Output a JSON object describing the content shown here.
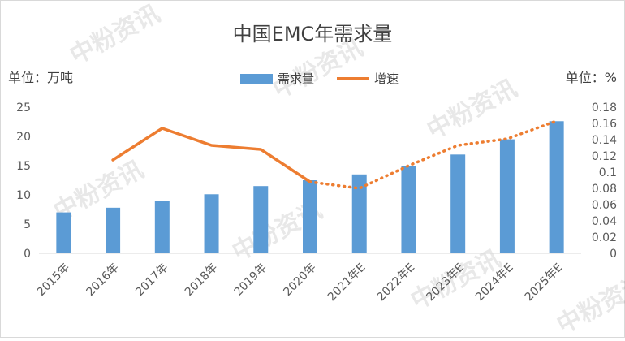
{
  "watermark": "中粉资讯",
  "chart_data": {
    "type": "bar",
    "title": "中国EMC年需求量",
    "left_unit": "单位：万吨",
    "right_unit": "单位：%",
    "categories": [
      "2015年",
      "2016年",
      "2017年",
      "2018年",
      "2019年",
      "2020年",
      "2021年E",
      "2022年E",
      "2023年E",
      "2024年E",
      "2025年E"
    ],
    "series": [
      {
        "name": "需求量",
        "type": "bar",
        "axis": "left",
        "color": "#5b9bd5",
        "values": [
          7.0,
          7.8,
          9.0,
          10.1,
          11.5,
          12.5,
          13.5,
          14.9,
          16.9,
          19.5,
          22.6
        ]
      },
      {
        "name": "增速",
        "type": "line",
        "axis": "right",
        "color": "#ed7d31",
        "values": [
          null,
          0.115,
          0.154,
          0.133,
          0.128,
          0.088,
          0.08,
          0.108,
          0.133,
          0.141,
          0.163
        ],
        "forecast_from_index": 5
      }
    ],
    "y_left": {
      "min": 0,
      "max": 25,
      "ticks": [
        "0",
        "5",
        "10",
        "15",
        "20",
        "25"
      ]
    },
    "y_right": {
      "min": 0,
      "max": 0.18,
      "ticks": [
        "0",
        "0.02",
        "0.04",
        "0.06",
        "0.08",
        "0.1",
        "0.12",
        "0.14",
        "0.16",
        "0.18"
      ]
    },
    "grid": false,
    "legend_position": "top-center"
  }
}
